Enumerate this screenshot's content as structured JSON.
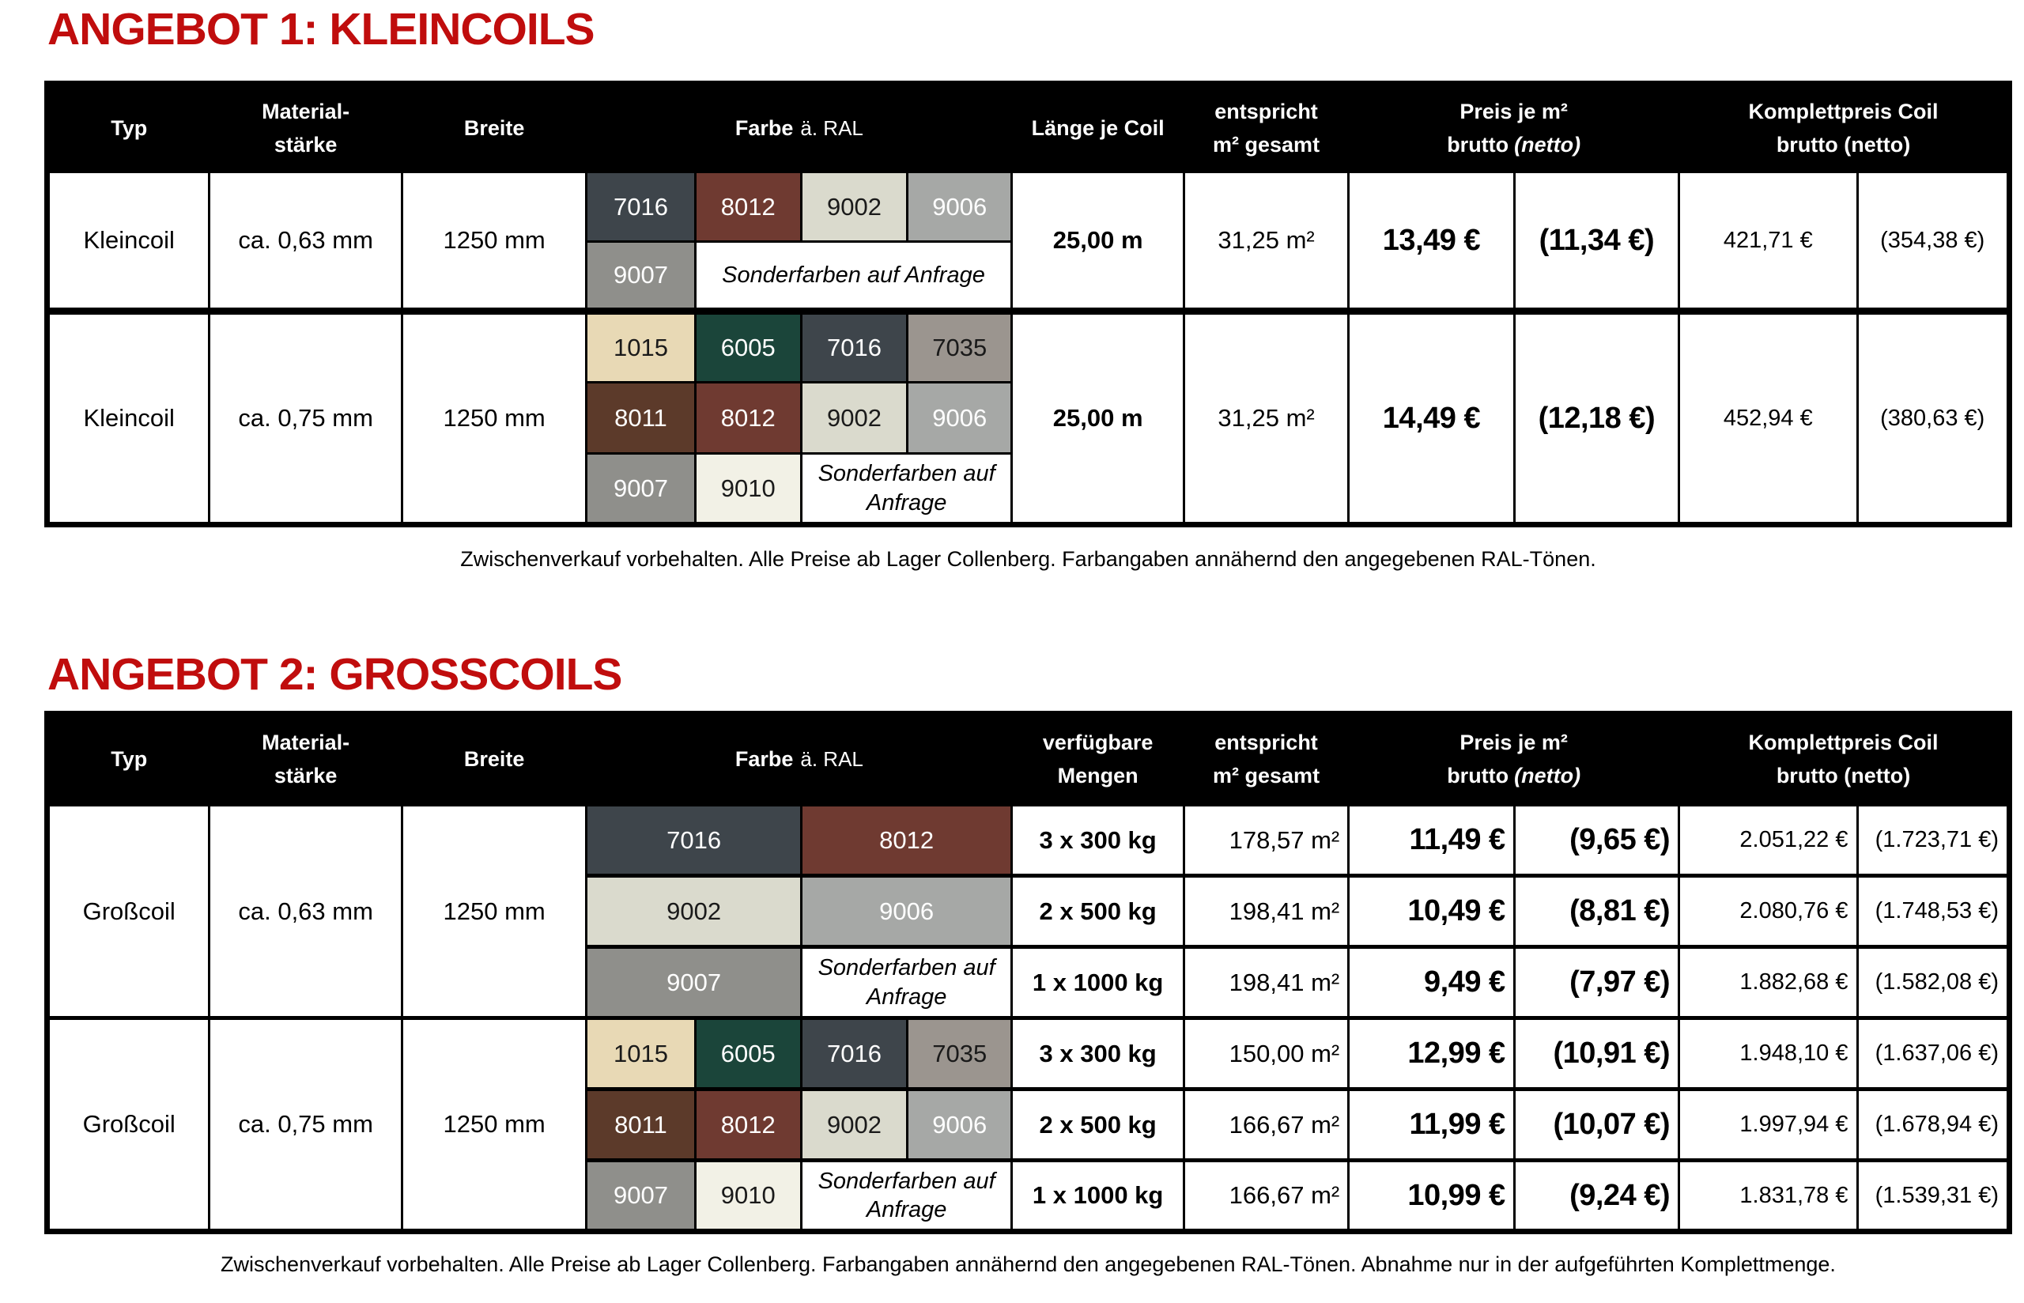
{
  "theme": {
    "title_red": "#c00d0d",
    "header_bg": "#000000",
    "header_fg": "#ffffff"
  },
  "ral_colors": {
    "1015": {
      "bg": "#e8d9b5",
      "fg": "#1a1a1a"
    },
    "6005": {
      "bg": "#1b453a",
      "fg": "#ffffff"
    },
    "7016": {
      "bg": "#3e454b",
      "fg": "#ffffff"
    },
    "7035": {
      "bg": "#9b958f",
      "fg": "#1a1a1a"
    },
    "8011": {
      "bg": "#5c3a2a",
      "fg": "#ffffff"
    },
    "8012": {
      "bg": "#6f3a31",
      "fg": "#ffffff"
    },
    "9002": {
      "bg": "#dadacd",
      "fg": "#1a1a1a"
    },
    "9006": {
      "bg": "#a6a8a6",
      "fg": "#ffffff"
    },
    "9007": {
      "bg": "#8f8f8b",
      "fg": "#ffffff"
    },
    "9010": {
      "bg": "#f2f1e6",
      "fg": "#1a1a1a"
    }
  },
  "titles": {
    "angebot1": "ANGEBOT 1: KLEINCOILS",
    "angebot2": "ANGEBOT 2: GROSSCOILS"
  },
  "notes": {
    "table1": "Zwischenverkauf vorbehalten. Alle Preise ab Lager Collenberg. Farbangaben annähernd den angegebenen RAL-Tönen.",
    "table2": "Zwischenverkauf vorbehalten. Alle Preise ab Lager Collenberg. Farbangaben annähernd den angegebenen RAL-Tönen. Abnahme nur in der aufgeführten Komplettmenge."
  },
  "headers": {
    "typ": "Typ",
    "material": "Material-\nstärke",
    "breite": "Breite",
    "farbe_bold": "Farbe",
    "farbe_rest": "ä. RAL",
    "laenge": "Länge je Coil",
    "mengen": "verfügbare\nMengen",
    "entspricht": "entspricht\nm² gesamt",
    "preis_line1": "Preis je m²",
    "preis_brutto": "brutto",
    "preis_netto_italic": "(netto)",
    "komplett_line1": "Komplettpreis Coil",
    "komplett_line2": "brutto (netto)"
  },
  "t1": {
    "g1": {
      "typ": "Kleincoil",
      "staerke": "ca. 0,63 mm",
      "breite": "1250 mm",
      "c1": "7016",
      "c2": "8012",
      "c3": "9002",
      "c4": "9006",
      "c5": "9007",
      "sonder": "Sonderfarben auf Anfrage",
      "laenge": "25,00 m",
      "flaeche": "31,25 m²",
      "preis": "13,49 €",
      "preis_netto": "(11,34 €)",
      "komplett": "421,71 €",
      "komplett_netto": "(354,38 €)"
    },
    "g2": {
      "typ": "Kleincoil",
      "staerke": "ca. 0,75 mm",
      "breite": "1250 mm",
      "r1": [
        "1015",
        "6005",
        "7016",
        "7035"
      ],
      "r2": [
        "8011",
        "8012",
        "9002",
        "9006"
      ],
      "r3": [
        "9007",
        "9010"
      ],
      "sonder": "Sonderfarben auf Anfrage",
      "laenge": "25,00 m",
      "flaeche": "31,25 m²",
      "preis": "14,49 €",
      "preis_netto": "(12,18 €)",
      "komplett": "452,94 €",
      "komplett_netto": "(380,63 €)"
    }
  },
  "t2": {
    "g1": {
      "typ": "Großcoil",
      "staerke": "ca. 0,63 mm",
      "breite": "1250 mm",
      "rows": [
        {
          "c1": "7016",
          "c2": "8012",
          "menge": "3 x 300 kg",
          "flaeche": "178,57 m²",
          "preis": "11,49 €",
          "preis_netto": "(9,65 €)",
          "komplett": "2.051,22 €",
          "komplett_netto": "(1.723,71 €)"
        },
        {
          "c1": "9002",
          "c2": "9006",
          "menge": "2 x 500 kg",
          "flaeche": "198,41 m²",
          "preis": "10,49 €",
          "preis_netto": "(8,81 €)",
          "komplett": "2.080,76 €",
          "komplett_netto": "(1.748,53 €)"
        },
        {
          "c1": "9007",
          "sonder": "Sonderfarben auf Anfrage",
          "menge": "1 x 1000 kg",
          "flaeche": "198,41 m²",
          "preis": "9,49 €",
          "preis_netto": "(7,97 €)",
          "komplett": "1.882,68 €",
          "komplett_netto": "(1.582,08 €)"
        }
      ]
    },
    "g2": {
      "typ": "Großcoil",
      "staerke": "ca. 0,75 mm",
      "breite": "1250 mm",
      "rows": [
        {
          "c1": "1015",
          "c2": "6005",
          "c3": "7016",
          "c4": "7035",
          "menge": "3 x 300 kg",
          "flaeche": "150,00 m²",
          "preis": "12,99 €",
          "preis_netto": "(10,91 €)",
          "komplett": "1.948,10 €",
          "komplett_netto": "(1.637,06 €)"
        },
        {
          "c1": "8011",
          "c2": "8012",
          "c3": "9002",
          "c4": "9006",
          "menge": "2 x 500 kg",
          "flaeche": "166,67 m²",
          "preis": "11,99 €",
          "preis_netto": "(10,07 €)",
          "komplett": "1.997,94 €",
          "komplett_netto": "(1.678,94 €)"
        },
        {
          "c1": "9007",
          "c2": "9010",
          "sonder": "Sonderfarben auf Anfrage",
          "menge": "1 x 1000 kg",
          "flaeche": "166,67 m²",
          "preis": "10,99 €",
          "preis_netto": "(9,24 €)",
          "komplett": "1.831,78 €",
          "komplett_netto": "(1.539,31 €)"
        }
      ]
    }
  }
}
